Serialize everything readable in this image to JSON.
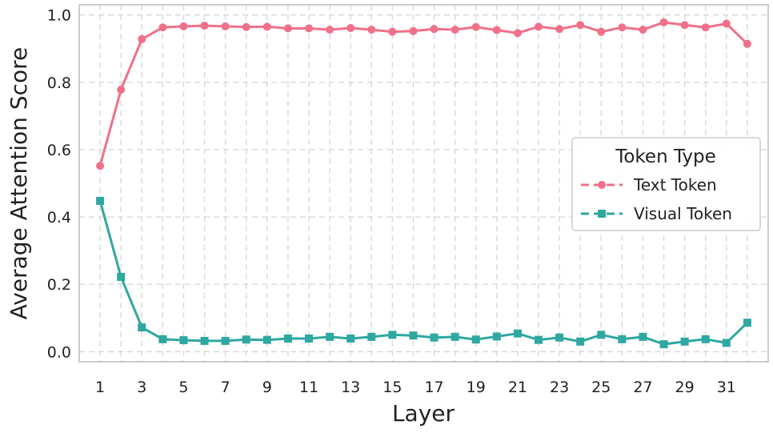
{
  "chart_data": {
    "type": "line",
    "xlabel": "Layer",
    "ylabel": "Average Attention Score",
    "xlim": [
      0,
      33
    ],
    "ylim": [
      -0.03,
      1.03
    ],
    "x": [
      1,
      2,
      3,
      4,
      5,
      6,
      7,
      8,
      9,
      10,
      11,
      12,
      13,
      14,
      15,
      16,
      17,
      18,
      19,
      20,
      21,
      22,
      23,
      24,
      25,
      26,
      27,
      28,
      29,
      30,
      31,
      32
    ],
    "x_ticks": [
      1,
      3,
      5,
      7,
      9,
      11,
      13,
      15,
      17,
      19,
      21,
      23,
      25,
      27,
      29,
      31
    ],
    "y_ticks": [
      "0.0",
      "0.2",
      "0.4",
      "0.6",
      "0.8",
      "1.0"
    ],
    "grid": true,
    "legend": {
      "title": "Token Type",
      "placement": "center-right"
    },
    "series": [
      {
        "name": "Text Token",
        "color": "#f07089",
        "marker": "circle",
        "values": [
          0.552,
          0.778,
          0.928,
          0.963,
          0.966,
          0.968,
          0.966,
          0.964,
          0.965,
          0.96,
          0.96,
          0.956,
          0.961,
          0.956,
          0.95,
          0.952,
          0.958,
          0.956,
          0.964,
          0.955,
          0.946,
          0.965,
          0.958,
          0.97,
          0.95,
          0.963,
          0.956,
          0.978,
          0.97,
          0.963,
          0.974,
          0.914
        ]
      },
      {
        "name": "Visual Token",
        "color": "#2ea8a0",
        "marker": "square",
        "values": [
          0.448,
          0.222,
          0.072,
          0.037,
          0.034,
          0.032,
          0.032,
          0.036,
          0.035,
          0.039,
          0.039,
          0.044,
          0.039,
          0.044,
          0.05,
          0.048,
          0.042,
          0.044,
          0.036,
          0.045,
          0.054,
          0.035,
          0.042,
          0.03,
          0.05,
          0.037,
          0.044,
          0.022,
          0.03,
          0.037,
          0.026,
          0.086
        ]
      }
    ]
  }
}
